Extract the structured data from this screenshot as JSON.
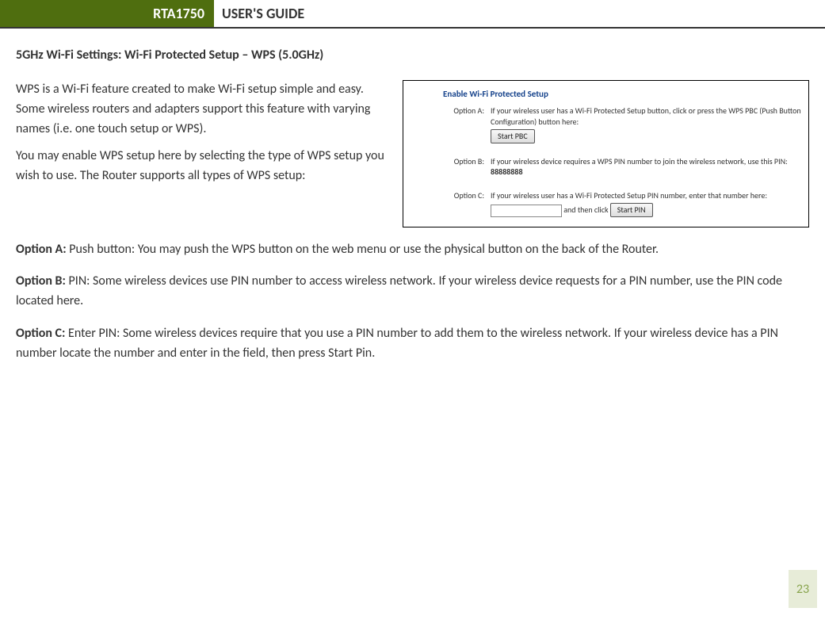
{
  "header": {
    "model": "RTA1750",
    "title": "USER'S GUIDE",
    "accent_color": "#4f6e0f"
  },
  "section_title": "5GHz Wi-Fi Settings: Wi-Fi Protected Setup – WPS (5.0GHz)",
  "intro": {
    "p1": "WPS is a Wi-Fi feature created to make Wi-Fi setup simple and easy.  Some wireless routers and adapters support this feature with varying names (i.e. one touch setup or WPS).",
    "p2": "You may enable WPS setup here by selecting the type of WPS setup you wish to use. The Router supports all types of WPS setup:"
  },
  "screenshot": {
    "title": "Enable Wi-Fi Protected Setup",
    "title_color": "#15428b",
    "option_a_label": "Option A:",
    "option_a_text": "If your wireless user has a Wi-Fi Protected Setup button, click or press the WPS PBC (Push Button Configuration) button here:",
    "option_a_button": "Start PBC",
    "option_b_label": "Option B:",
    "option_b_text_prefix": "If your wireless device requires a WPS PIN number to join the wireless network, use this PIN: ",
    "option_b_pin": "88888888",
    "option_c_label": "Option C:",
    "option_c_text": "If your wireless user has a Wi-Fi Protected Setup PIN number, enter that number here:",
    "option_c_suffix": " and then click ",
    "option_c_button": "Start PIN",
    "option_c_input_value": ""
  },
  "options": {
    "a": {
      "label": "Option A:",
      "text": " Push button: You may push the WPS button on the web menu or use the physical button on the back of the Router."
    },
    "b": {
      "label": "Option B:",
      "text": " PIN: Some wireless devices use PIN number to access wireless network.  If your wireless device requests for a PIN number, use the PIN code located here."
    },
    "c": {
      "label": "Option C:",
      "text": " Enter PIN: Some wireless devices require that you use a PIN number to add them to the wireless network.  If your wireless device has a PIN number locate the number and enter in the field, then press Start Pin."
    }
  },
  "page_number": "23",
  "page_number_bg": "#e7ecd8",
  "page_number_color": "#89a54e"
}
